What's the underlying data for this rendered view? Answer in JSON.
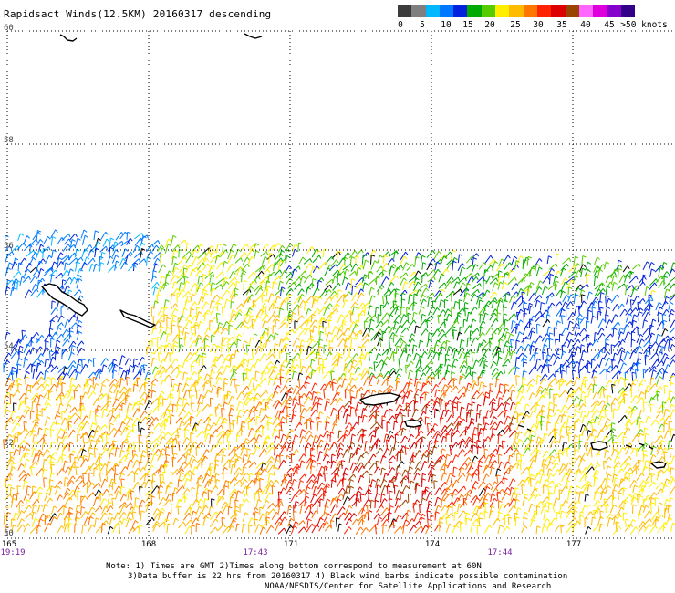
{
  "title": "Rapidsact Winds(12.5KM) 20160317 descending",
  "colorbar": {
    "colors": [
      "#3c3c3c",
      "#7f7f7f",
      "#00b8ff",
      "#0077ff",
      "#0022dd",
      "#00aa00",
      "#55cc00",
      "#ffee00",
      "#ffbb00",
      "#ff7700",
      "#ff2200",
      "#dd0000",
      "#994400",
      "#ff66ff",
      "#dd00dd",
      "#8800cc",
      "#330088"
    ],
    "labels": [
      "0",
      "5",
      "10",
      "15",
      "20",
      "25",
      "30",
      "35",
      "40",
      "45",
      ">50 knots"
    ]
  },
  "map": {
    "lat_labels": [
      "60",
      "58",
      "56",
      "54",
      "52",
      "50"
    ],
    "lon_labels": [
      "165",
      "168",
      "171",
      "174",
      "177"
    ],
    "time_labels": [
      "19:19",
      "17:43",
      "17:44"
    ]
  },
  "notes": [
    "Note: 1) Times are GMT 2)Times along bottom correspond to measurement at 60N",
    "3)Data buffer is 22 hrs from 20160317 4) Black wind barbs indicate possible contamination",
    "NOAA/NESDIS/Center for Satellite Applications and Research"
  ]
}
